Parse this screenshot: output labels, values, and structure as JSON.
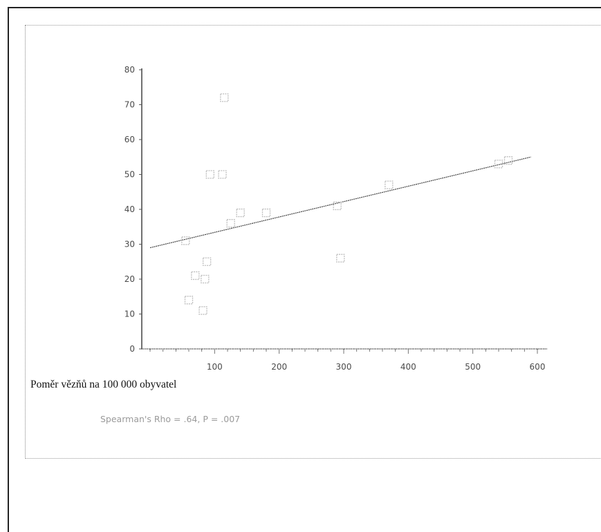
{
  "chart_data": {
    "type": "scatter",
    "x_ticks": [
      100,
      200,
      300,
      400,
      500,
      600
    ],
    "y_ticks": [
      0,
      10,
      20,
      30,
      40,
      50,
      60,
      70,
      80
    ],
    "xlim": [
      0,
      600
    ],
    "ylim": [
      0,
      80
    ],
    "xlabel": "Poměr vězňů na 100 000 obyvatel",
    "annotation": "Spearman's Rho = .64, P = .007",
    "grid": false,
    "points": [
      {
        "x": 115,
        "y": 72
      },
      {
        "x": 93,
        "y": 50
      },
      {
        "x": 112,
        "y": 50
      },
      {
        "x": 140,
        "y": 39
      },
      {
        "x": 180,
        "y": 39
      },
      {
        "x": 125,
        "y": 36
      },
      {
        "x": 55,
        "y": 31
      },
      {
        "x": 290,
        "y": 41
      },
      {
        "x": 370,
        "y": 47
      },
      {
        "x": 540,
        "y": 53
      },
      {
        "x": 555,
        "y": 54
      },
      {
        "x": 88,
        "y": 25
      },
      {
        "x": 70,
        "y": 21
      },
      {
        "x": 85,
        "y": 20
      },
      {
        "x": 60,
        "y": 14
      },
      {
        "x": 82,
        "y": 11
      },
      {
        "x": 295,
        "y": 26
      }
    ],
    "trendline": {
      "x": [
        0,
        590
      ],
      "y": [
        29,
        55
      ]
    }
  }
}
